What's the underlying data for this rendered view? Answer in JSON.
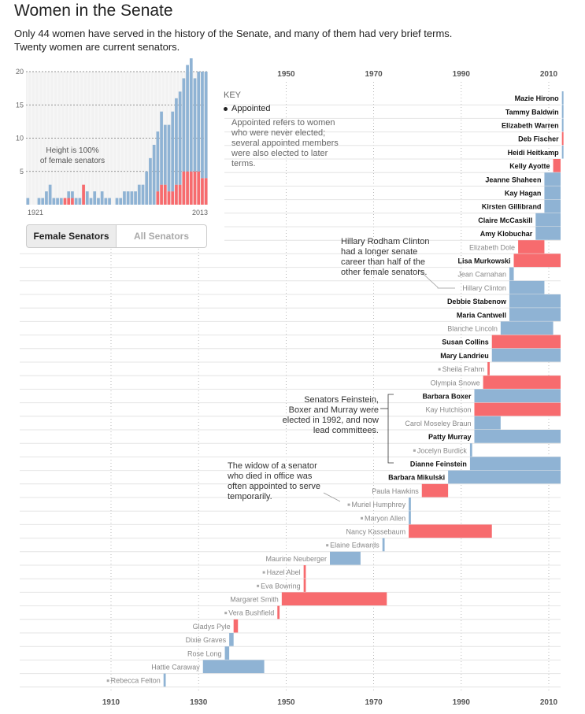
{
  "header": {
    "title": "Women in the Senate",
    "subtitle": "Only 44 women have served in the history of the Senate, and many of them had very brief terms. Twenty women are current senators."
  },
  "toggle": {
    "female": "Female Senators",
    "all": "All Senators"
  },
  "key": {
    "title": "KEY",
    "label": "Appointed",
    "text": "Appointed refers to women who were never elected; several appointed members were also elected to later terms."
  },
  "annotations": {
    "clinton": "Hillary Rodham Clinton had a longer senate career than half of the other female senators.",
    "feinstein": "Senators Feinstein, Boxer and Murray were elected in 1992, and now lead committees.",
    "widow": "The widow of a senator who died in office was often appointed to serve temporarily."
  },
  "colors": {
    "elected": "#8fb3d4",
    "appointed": "#f76b6e",
    "bg": "#f2f2f2"
  },
  "chart_data": [
    {
      "type": "bar",
      "note": "Height is 100% of female senators",
      "x_start_label": "1921",
      "x_end_label": "2013",
      "ylim": [
        0,
        20
      ],
      "yticks": [
        "20",
        "15",
        "10",
        "5"
      ],
      "series": [
        {
          "name": "Elected",
          "values": [
            1,
            0,
            0,
            1,
            1,
            2,
            3,
            1,
            1,
            1,
            0,
            1,
            1,
            1,
            1,
            0,
            2,
            1,
            2,
            1,
            2,
            1,
            1,
            0,
            1,
            1,
            2,
            2,
            2,
            2,
            3,
            3,
            5,
            7,
            9,
            9,
            11,
            9,
            10,
            12,
            13,
            14,
            14,
            16,
            17,
            14,
            15,
            16,
            16
          ]
        },
        {
          "name": "Appointed",
          "values": [
            0,
            0,
            0,
            0,
            0,
            0,
            0,
            0,
            0,
            0,
            1,
            1,
            1,
            0,
            0,
            3,
            0,
            0,
            0,
            0,
            0,
            0,
            0,
            0,
            0,
            0,
            0,
            0,
            0,
            0,
            0,
            0,
            0,
            0,
            0,
            2,
            3,
            3,
            2,
            2,
            3,
            3,
            5,
            5,
            5,
            5,
            5,
            4,
            4
          ]
        }
      ]
    },
    {
      "type": "timeline",
      "xlim": [
        1920,
        2013
      ],
      "xticks": [
        "1910",
        "1930",
        "1950",
        "1970",
        "1990",
        "2010"
      ],
      "top_ticks": [
        "1950",
        "1970",
        "1990",
        "2010"
      ],
      "senators": [
        {
          "name": "Mazie Hirono",
          "start": 2013,
          "end": 2013.5,
          "type": "elected",
          "current": true
        },
        {
          "name": "Tammy Baldwin",
          "start": 2013,
          "end": 2013.5,
          "type": "elected",
          "current": true
        },
        {
          "name": "Elizabeth Warren",
          "start": 2013,
          "end": 2013.5,
          "type": "elected",
          "current": true
        },
        {
          "name": "Deb Fischer",
          "start": 2013,
          "end": 2013.5,
          "type": "appointed",
          "current": true
        },
        {
          "name": "Heidi Heitkamp",
          "start": 2013,
          "end": 2013.5,
          "type": "elected",
          "current": true
        },
        {
          "name": "Kelly Ayotte",
          "start": 2011,
          "end": 2013,
          "type": "appointed",
          "current": true
        },
        {
          "name": "Jeanne Shaheen",
          "start": 2009,
          "end": 2013,
          "type": "elected",
          "current": true
        },
        {
          "name": "Kay Hagan",
          "start": 2009,
          "end": 2013,
          "type": "elected",
          "current": true
        },
        {
          "name": "Kirsten Gillibrand",
          "start": 2009,
          "end": 2013,
          "type": "elected",
          "current": true
        },
        {
          "name": "Claire McCaskill",
          "start": 2007,
          "end": 2013,
          "type": "elected",
          "current": true
        },
        {
          "name": "Amy Klobuchar",
          "start": 2007,
          "end": 2013,
          "type": "elected",
          "current": true
        },
        {
          "name": "Elizabeth Dole",
          "start": 2003,
          "end": 2009,
          "type": "appointed",
          "current": false
        },
        {
          "name": "Lisa Murkowski",
          "start": 2002,
          "end": 2013,
          "type": "appointed",
          "current": true
        },
        {
          "name": "Jean Carnahan",
          "start": 2001,
          "end": 2002,
          "type": "elected",
          "current": false
        },
        {
          "name": "Hillary Clinton",
          "start": 2001,
          "end": 2009,
          "type": "elected",
          "current": false
        },
        {
          "name": "Debbie Stabenow",
          "start": 2001,
          "end": 2013,
          "type": "elected",
          "current": true
        },
        {
          "name": "Maria Cantwell",
          "start": 2001,
          "end": 2013,
          "type": "elected",
          "current": true
        },
        {
          "name": "Blanche Lincoln",
          "start": 1999,
          "end": 2011,
          "type": "elected",
          "current": false
        },
        {
          "name": "Susan Collins",
          "start": 1997,
          "end": 2013,
          "type": "appointed",
          "current": true
        },
        {
          "name": "Mary Landrieu",
          "start": 1997,
          "end": 2013,
          "type": "elected",
          "current": true
        },
        {
          "name": "Sheila Frahm",
          "start": 1996,
          "end": 1996.5,
          "type": "appointed",
          "current": false
        },
        {
          "name": "Olympia Snowe",
          "start": 1995,
          "end": 2013,
          "type": "appointed",
          "current": false
        },
        {
          "name": "Barbara Boxer",
          "start": 1993,
          "end": 2013,
          "type": "elected",
          "current": true
        },
        {
          "name": "Kay Hutchison",
          "start": 1993,
          "end": 2013,
          "type": "appointed",
          "current": false
        },
        {
          "name": "Carol Moseley Braun",
          "start": 1993,
          "end": 1999,
          "type": "elected",
          "current": false
        },
        {
          "name": "Patty Murray",
          "start": 1993,
          "end": 2013,
          "type": "elected",
          "current": true
        },
        {
          "name": "Jocelyn Burdick",
          "start": 1992,
          "end": 1992.5,
          "type": "elected",
          "current": false
        },
        {
          "name": "Dianne Feinstein",
          "start": 1992,
          "end": 2013,
          "type": "elected",
          "current": true
        },
        {
          "name": "Barbara Mikulski",
          "start": 1987,
          "end": 2013,
          "type": "elected",
          "current": true
        },
        {
          "name": "Paula Hawkins",
          "start": 1981,
          "end": 1987,
          "type": "appointed",
          "current": false
        },
        {
          "name": "Muriel Humphrey",
          "start": 1978,
          "end": 1978.5,
          "type": "elected",
          "current": false
        },
        {
          "name": "Maryon Allen",
          "start": 1978,
          "end": 1978.5,
          "type": "elected",
          "current": false
        },
        {
          "name": "Nancy Kassebaum",
          "start": 1978,
          "end": 1997,
          "type": "appointed",
          "current": false
        },
        {
          "name": "Elaine Edwards",
          "start": 1972,
          "end": 1972.5,
          "type": "elected",
          "current": false
        },
        {
          "name": "Maurine Neuberger",
          "start": 1960,
          "end": 1967,
          "type": "elected",
          "current": false
        },
        {
          "name": "Hazel Abel",
          "start": 1954,
          "end": 1954.5,
          "type": "appointed",
          "current": false
        },
        {
          "name": "Eva Bowring",
          "start": 1954,
          "end": 1954.5,
          "type": "appointed",
          "current": false
        },
        {
          "name": "Margaret Smith",
          "start": 1949,
          "end": 1973,
          "type": "appointed",
          "current": false
        },
        {
          "name": "Vera Bushfield",
          "start": 1948,
          "end": 1948.5,
          "type": "appointed",
          "current": false
        },
        {
          "name": "Gladys Pyle",
          "start": 1938,
          "end": 1939,
          "type": "appointed",
          "current": false
        },
        {
          "name": "Dixie Graves",
          "start": 1937,
          "end": 1938,
          "type": "elected",
          "current": false
        },
        {
          "name": "Rose Long",
          "start": 1936,
          "end": 1937,
          "type": "elected",
          "current": false
        },
        {
          "name": "Hattie Caraway",
          "start": 1931,
          "end": 1945,
          "type": "elected",
          "current": false
        },
        {
          "name": "Rebecca Felton",
          "start": 1922,
          "end": 1922.5,
          "type": "elected",
          "current": false
        }
      ]
    }
  ]
}
